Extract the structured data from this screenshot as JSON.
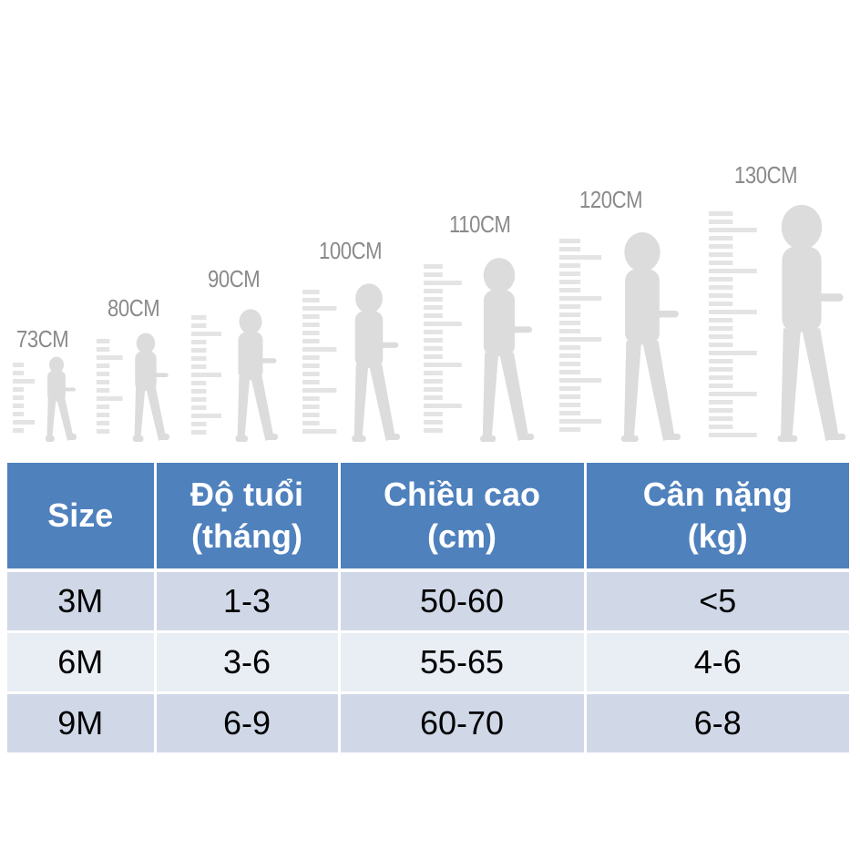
{
  "colors": {
    "header_bg": "#4f81bd",
    "row_odd_bg": "#d0d8e8",
    "row_even_bg": "#e9edf4",
    "figure_color": "#dcdcdc",
    "label_color": "#8a8a8a"
  },
  "growth_chart": {
    "heights": [
      "73CM",
      "80CM",
      "90CM",
      "100CM",
      "110CM",
      "120CM",
      "130CM"
    ],
    "icon": "child-silhouette-icon"
  },
  "table": {
    "headers": [
      {
        "line1": "Size",
        "line2": ""
      },
      {
        "line1": "Độ tuổi",
        "line2": "(tháng)"
      },
      {
        "line1": "Chiều cao",
        "line2": "(cm)"
      },
      {
        "line1": "Cân nặng",
        "line2": "(kg)"
      }
    ],
    "rows": [
      [
        "3M",
        "1-3",
        "50-60",
        "<5"
      ],
      [
        "6M",
        "3-6",
        "55-65",
        "4-6"
      ],
      [
        "9M",
        "6-9",
        "60-70",
        "6-8"
      ]
    ]
  }
}
